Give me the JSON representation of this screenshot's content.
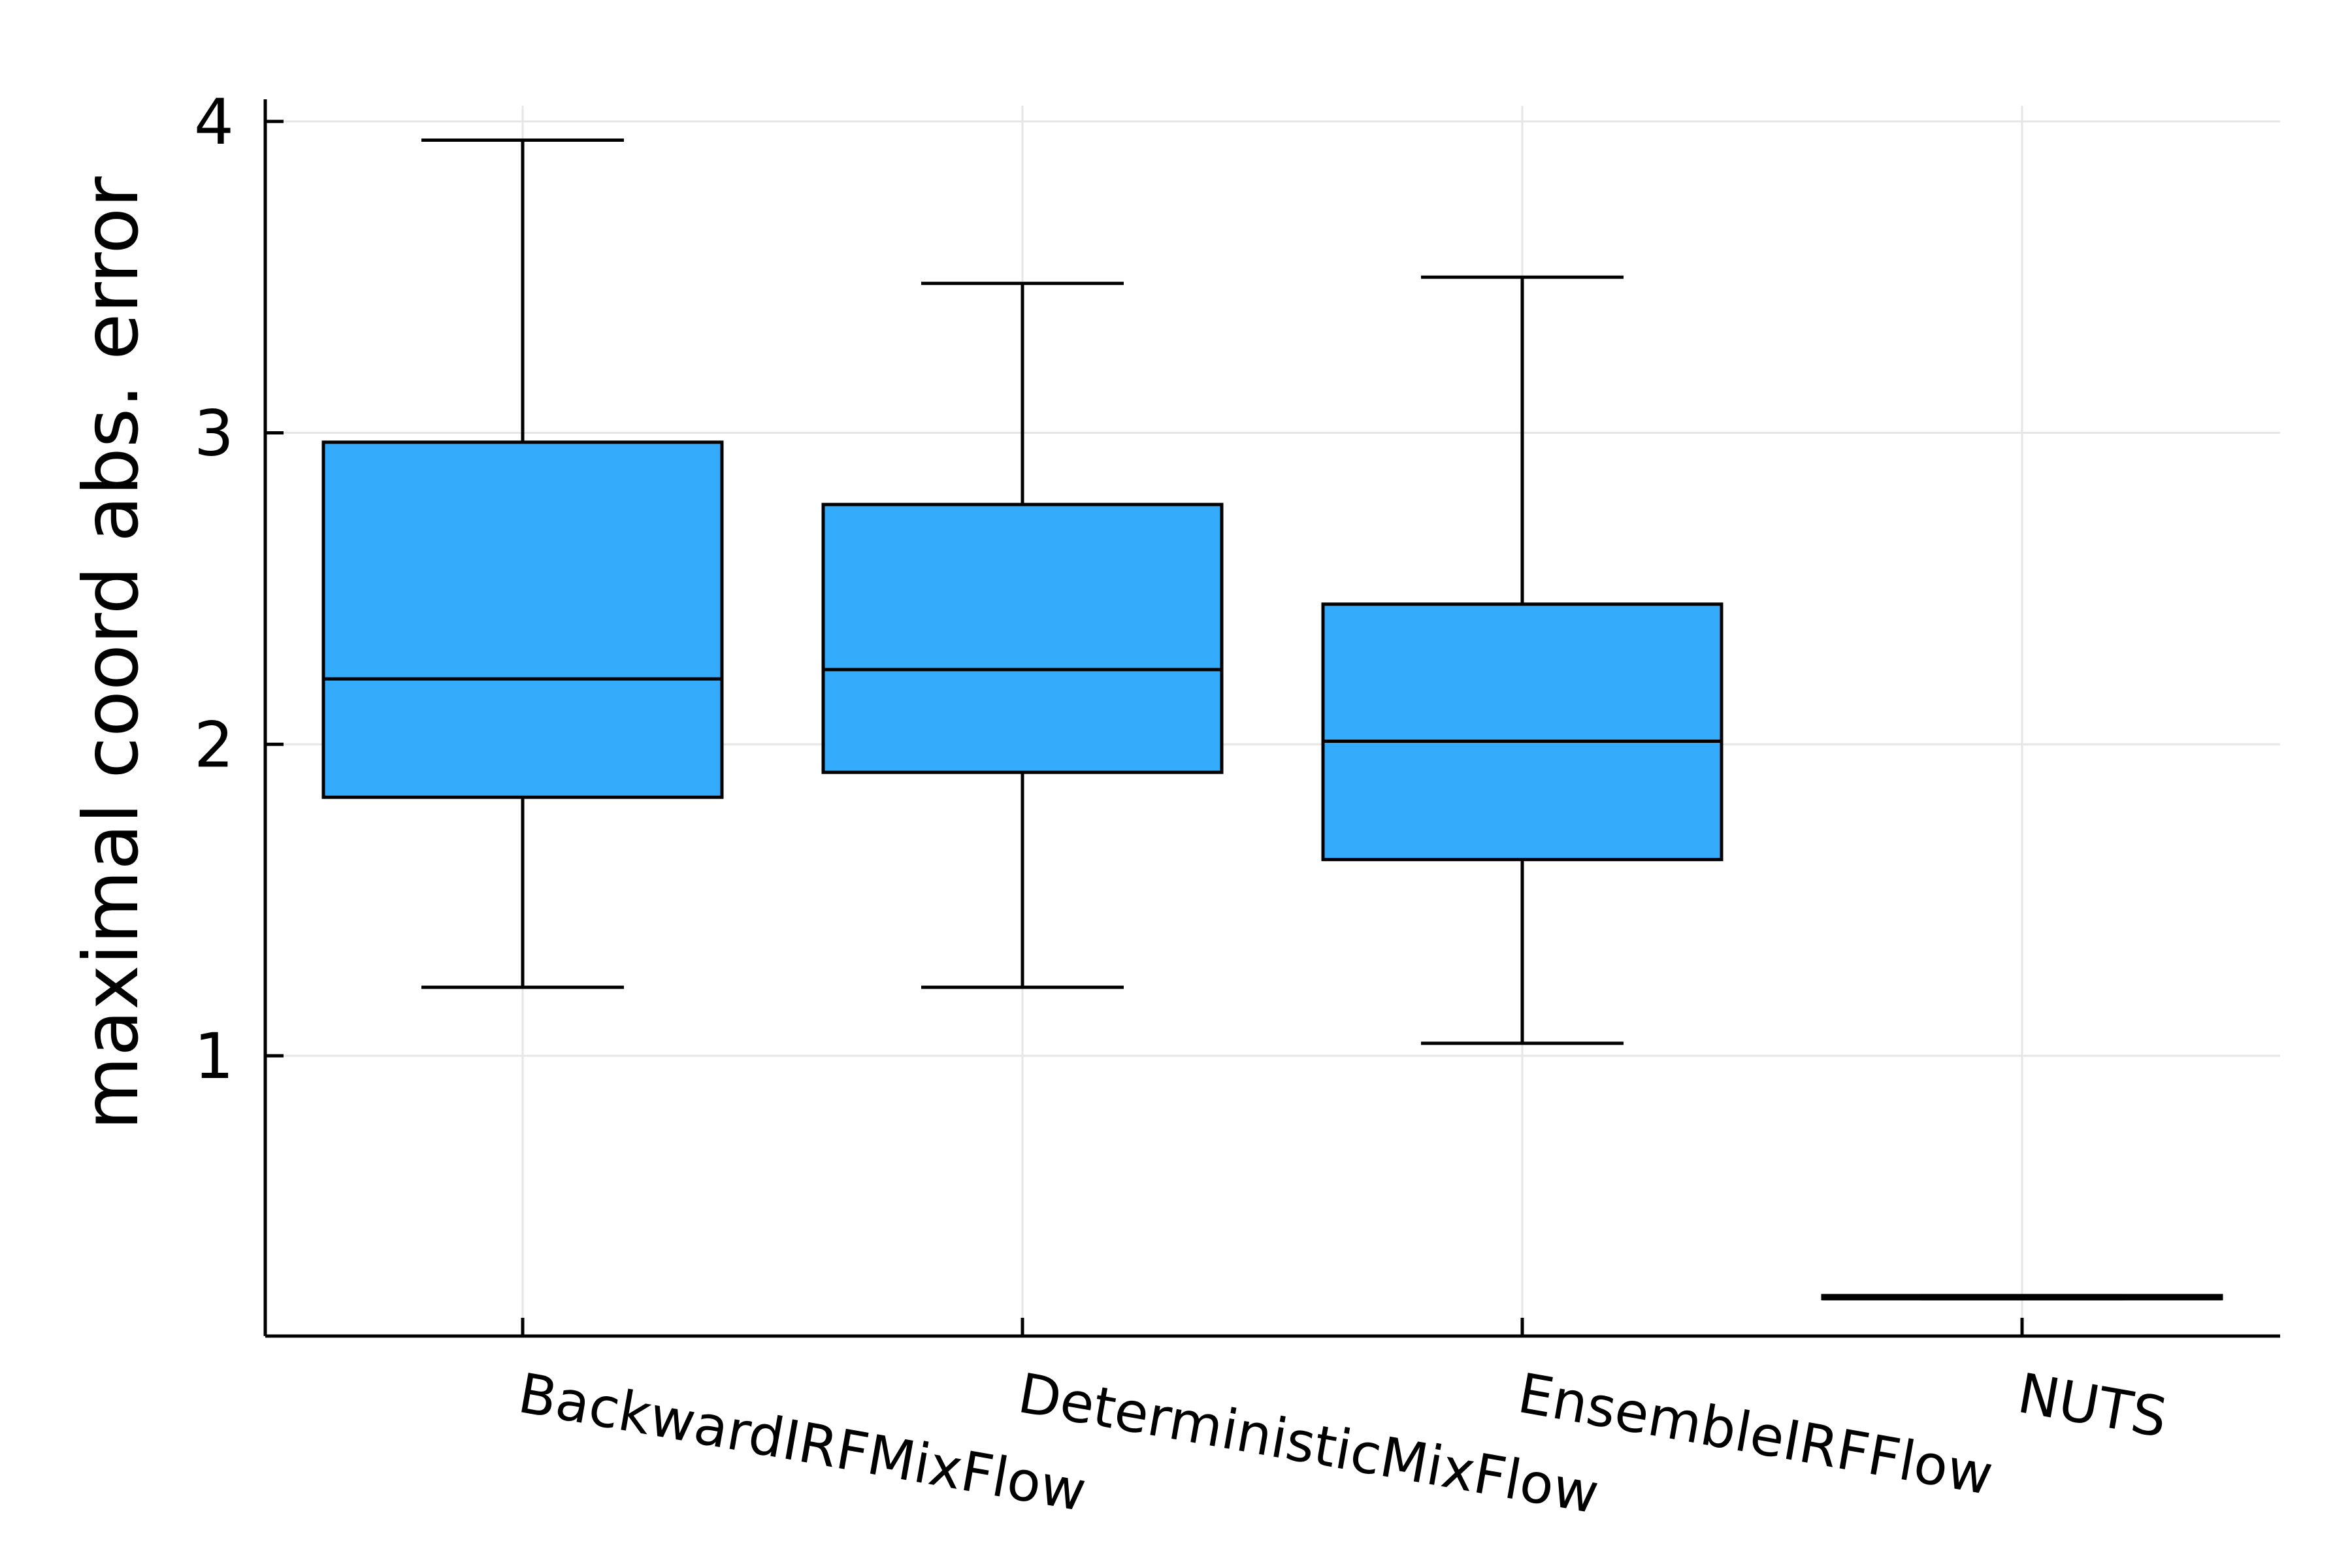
{
  "chart_data": {
    "type": "box",
    "categories": [
      "BackwardIRFMixFlow",
      "DeterministicMixFlow",
      "EnsembleIRFFlow",
      "NUTS"
    ],
    "boxes": [
      {
        "category": "BackwardIRFMixFlow",
        "whisker_low": 1.22,
        "q1": 1.83,
        "median": 2.21,
        "q3": 2.97,
        "whisker_high": 3.94
      },
      {
        "category": "DeterministicMixFlow",
        "whisker_low": 1.22,
        "q1": 1.91,
        "median": 2.24,
        "q3": 2.77,
        "whisker_high": 3.48
      },
      {
        "category": "EnsembleIRFFlow",
        "whisker_low": 1.04,
        "q1": 1.63,
        "median": 2.01,
        "q3": 2.45,
        "whisker_high": 3.5
      },
      {
        "category": "NUTS",
        "whisker_low": 0.22,
        "q1": 0.22,
        "median": 0.22,
        "q3": 0.23,
        "whisker_high": 0.23
      }
    ],
    "title": "",
    "xlabel": "",
    "ylabel": "maximal coord abs. error",
    "ylim": [
      0.1,
      4.05
    ],
    "yticks": [
      1,
      2,
      3,
      4
    ],
    "ytick_labels": [
      "1",
      "2",
      "3",
      "4"
    ],
    "grid": true,
    "legend": "none",
    "box_color": "#35acfb",
    "edge_color": "#000000",
    "grid_color": "#e6e6e6"
  }
}
